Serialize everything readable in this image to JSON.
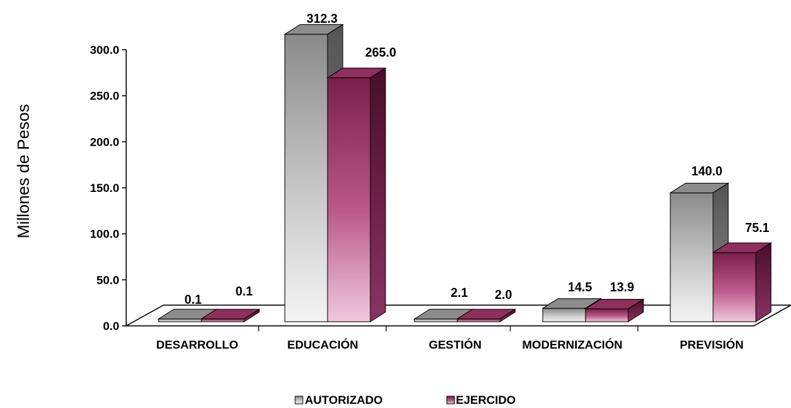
{
  "chart_data": {
    "type": "bar",
    "ylabel": "Millones de Pesos",
    "ylim": [
      0,
      300
    ],
    "yticks": [
      "0.0",
      "50.0",
      "100.0",
      "150.0",
      "200.0",
      "250.0",
      "300.0"
    ],
    "categories": [
      "DESARROLLO",
      "EDUCACIÓN",
      "GESTIÓN",
      "MODERNIZACIÓN",
      "PREVISIÓN"
    ],
    "series": [
      {
        "name": "AUTORIZADO",
        "values": [
          0.1,
          312.3,
          2.1,
          14.5,
          140.0
        ],
        "labels": [
          "0.1",
          "312.3",
          "2.1",
          "14.5",
          "140.0"
        ],
        "color": "#b4b4b4"
      },
      {
        "name": "EJERCIDO",
        "values": [
          0.1,
          265.0,
          2.0,
          13.9,
          75.1
        ],
        "labels": [
          "0.1",
          "265.0",
          "2.0",
          "13.9",
          "75.1"
        ],
        "color": "#a8406e"
      }
    ],
    "legend": "bottom",
    "style": "3d-bar",
    "grid": false
  }
}
